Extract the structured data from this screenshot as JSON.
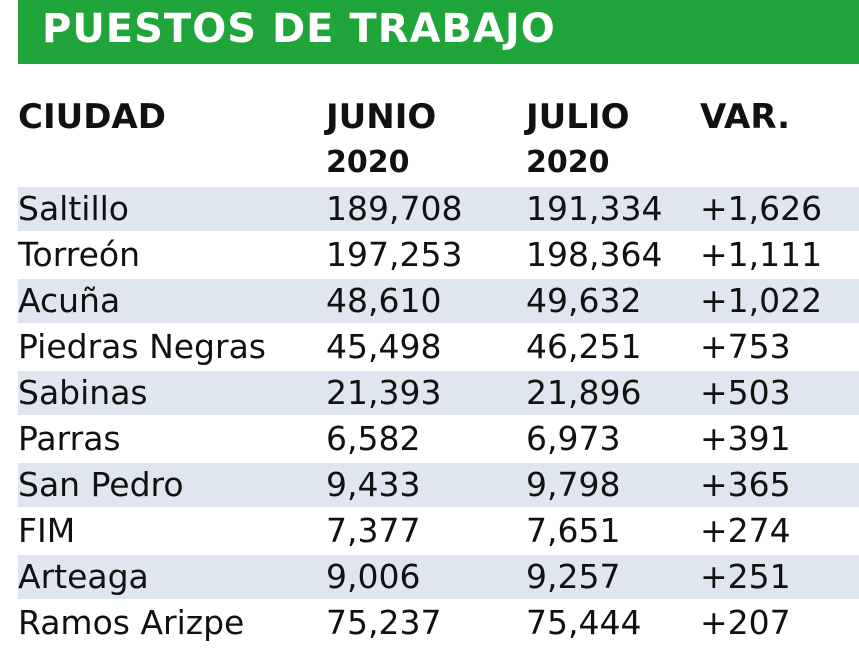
{
  "title": "PUESTOS DE TRABAJO",
  "colors": {
    "accent": "#1fa53a",
    "row_shade": "#dfe6ef",
    "title_text": "#ffffff"
  },
  "headers": {
    "city": "CIUDAD",
    "june": "JUNIO",
    "june_year": "2020",
    "july": "JULIO",
    "july_year": "2020",
    "var": "VAR."
  },
  "chart_data": {
    "type": "table",
    "title": "PUESTOS DE TRABAJO",
    "columns": [
      "CIUDAD",
      "JUNIO 2020",
      "JULIO 2020",
      "VAR."
    ],
    "rows": [
      {
        "city": "Saltillo",
        "june": "189,708",
        "july": "191,334",
        "var": "+1,626"
      },
      {
        "city": "Torreón",
        "june": "197,253",
        "july": "198,364",
        "var": "+1,111"
      },
      {
        "city": "Acuña",
        "june": "48,610",
        "july": "49,632",
        "var": "+1,022"
      },
      {
        "city": "Piedras Negras",
        "june": "45,498",
        "july": "46,251",
        "var": "+753"
      },
      {
        "city": "Sabinas",
        "june": "21,393",
        "july": "21,896",
        "var": "+503"
      },
      {
        "city": "Parras",
        "june": "6,582",
        "july": "6,973",
        "var": "+391"
      },
      {
        "city": "San Pedro",
        "june": "9,433",
        "july": "9,798",
        "var": "+365"
      },
      {
        "city": "FIM",
        "june": "7,377",
        "july": "7,651",
        "var": "+274"
      },
      {
        "city": "Arteaga",
        "june": "9,006",
        "july": "9,257",
        "var": "+251"
      },
      {
        "city": "Ramos Arizpe",
        "june": "75,237",
        "july": "75,444",
        "var": "+207"
      }
    ]
  }
}
